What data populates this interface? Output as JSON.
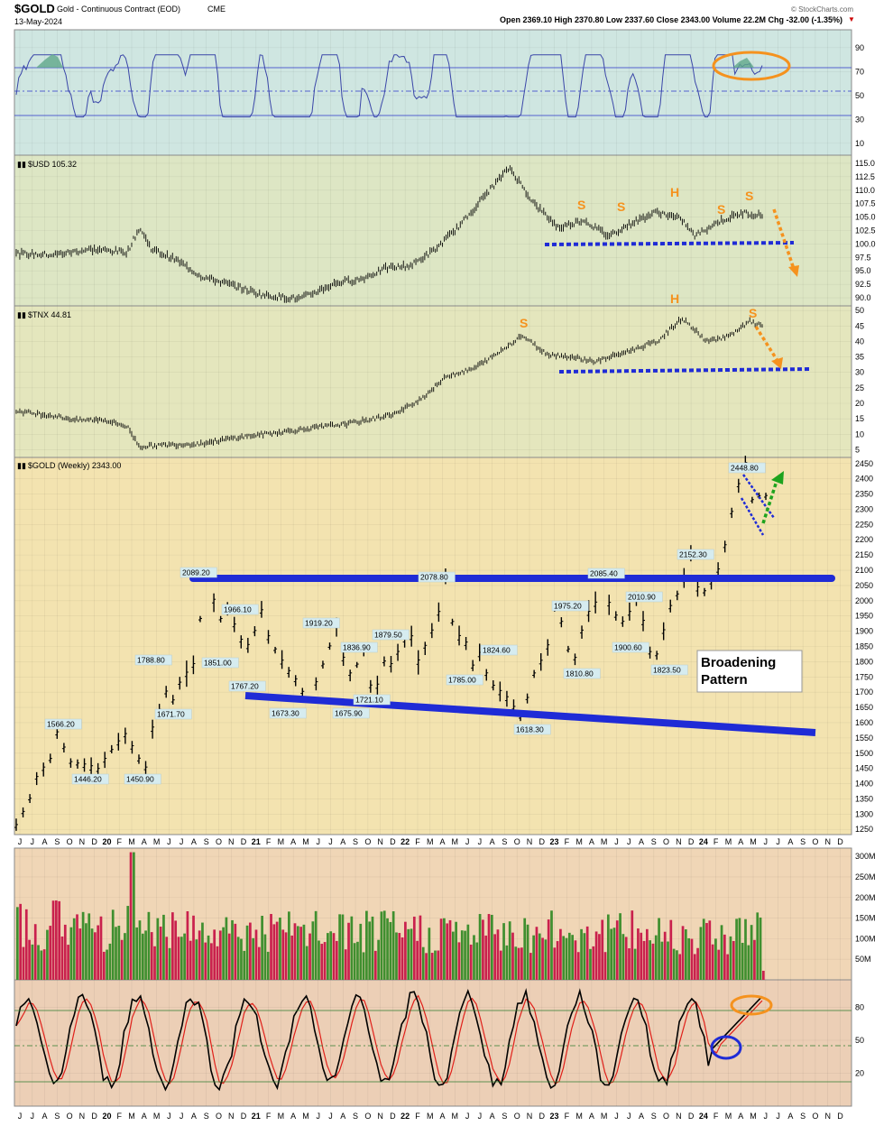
{
  "header": {
    "symbol": "$GOLD",
    "description": "Gold - Continuous Contract (EOD)",
    "exchange": "CME",
    "date": "13-May-2024",
    "quote": "Open 2369.10  High 2370.80  Low 2337.60  Close 2343.00  Volume 22.2M  Chg -32.00 (-1.35%)",
    "watermark": "© StockCharts.com"
  },
  "panels": {
    "rsi": {
      "ticks": [
        "90",
        "70",
        "50",
        "30",
        "10"
      ]
    },
    "usd": {
      "label": "$USD 105.32",
      "ticks": [
        "115.0",
        "112.5",
        "110.0",
        "107.5",
        "105.0",
        "102.5",
        "100.0",
        "97.5",
        "95.0",
        "92.5",
        "90.0"
      ]
    },
    "tnx": {
      "label": "$TNX 44.81",
      "ticks": [
        "50",
        "45",
        "40",
        "35",
        "30",
        "25",
        "20",
        "15",
        "10",
        "5"
      ]
    },
    "gold": {
      "label": "$GOLD (Weekly) 2343.00",
      "ticks": [
        "2450",
        "2400",
        "2350",
        "2300",
        "2250",
        "2200",
        "2150",
        "2100",
        "2050",
        "2000",
        "1950",
        "1900",
        "1850",
        "1800",
        "1750",
        "1700",
        "1650",
        "1600",
        "1550",
        "1500",
        "1450",
        "1400",
        "1350",
        "1300",
        "1250"
      ]
    },
    "volume": {
      "ticks": [
        "300M",
        "250M",
        "200M",
        "150M",
        "100M",
        "50M"
      ]
    },
    "stoch": {
      "ticks": [
        "80",
        "50",
        "20"
      ]
    }
  },
  "x_axis": {
    "labels": [
      "J",
      "J",
      "A",
      "S",
      "O",
      "N",
      "D",
      "20",
      "F",
      "M",
      "A",
      "M",
      "J",
      "J",
      "A",
      "S",
      "O",
      "N",
      "D",
      "21",
      "F",
      "M",
      "A",
      "M",
      "J",
      "J",
      "A",
      "S",
      "O",
      "N",
      "D",
      "22",
      "F",
      "M",
      "A",
      "M",
      "J",
      "J",
      "A",
      "S",
      "O",
      "N",
      "D",
      "23",
      "F",
      "M",
      "A",
      "M",
      "J",
      "J",
      "A",
      "S",
      "O",
      "N",
      "D",
      "24",
      "F",
      "M",
      "A",
      "M",
      "J",
      "J",
      "A",
      "S",
      "O",
      "N",
      "D"
    ],
    "bold_labels": [
      "20",
      "21",
      "22",
      "23",
      "24"
    ]
  },
  "annotations": {
    "usd_pattern": [
      "S",
      "S",
      "H",
      "S",
      "S"
    ],
    "tnx_pattern": [
      "S",
      "H",
      "S"
    ],
    "callout_line1": "Broadening",
    "callout_line2": "Pattern"
  },
  "colors": {
    "rsi_bg": "#cfe6e1",
    "usd_bg": "#dde6c4",
    "tnx_bg": "#e4e6bd",
    "gold_bg": "#f3e3b0",
    "volume_bg": "#f0d6b6",
    "stoch_bg": "#eccfb6",
    "blue_line": "#1f2bd6",
    "orange": "#f5921e",
    "green_arrow": "#1ea31e",
    "volume_up": "#3f8f2f",
    "volume_down": "#c9214d",
    "stoch_k": "#000000",
    "stoch_d": "#e0201a"
  },
  "chart_data": {
    "type": "line",
    "title": "$GOLD Gold - Continuous Contract (EOD) CME",
    "price_labels": [
      {
        "label": "1566.20",
        "value": 1566.2
      },
      {
        "label": "1446.20",
        "value": 1446.2
      },
      {
        "label": "1450.90",
        "value": 1450.9
      },
      {
        "label": "1788.80",
        "value": 1788.8
      },
      {
        "label": "1671.70",
        "value": 1671.7
      },
      {
        "label": "2089.20",
        "value": 2089.2
      },
      {
        "label": "1966.10",
        "value": 1966.1
      },
      {
        "label": "1851.00",
        "value": 1851.0
      },
      {
        "label": "1767.20",
        "value": 1767.2
      },
      {
        "label": "1673.30",
        "value": 1673.3
      },
      {
        "label": "1919.20",
        "value": 1919.2
      },
      {
        "label": "1836.90",
        "value": 1836.9
      },
      {
        "label": "1721.10",
        "value": 1721.1
      },
      {
        "label": "1675.90",
        "value": 1675.9
      },
      {
        "label": "1879.50",
        "value": 1879.5
      },
      {
        "label": "2078.80",
        "value": 2078.8
      },
      {
        "label": "1785.00",
        "value": 1785.0
      },
      {
        "label": "1824.60",
        "value": 1824.6
      },
      {
        "label": "1618.30",
        "value": 1618.3
      },
      {
        "label": "1975.20",
        "value": 1975.2
      },
      {
        "label": "1810.80",
        "value": 1810.8
      },
      {
        "label": "2085.40",
        "value": 2085.4
      },
      {
        "label": "1900.60",
        "value": 1900.6
      },
      {
        "label": "2010.90",
        "value": 2010.9
      },
      {
        "label": "1823.50",
        "value": 1823.5
      },
      {
        "label": "2152.30",
        "value": 2152.3
      },
      {
        "label": "2448.80",
        "value": 2448.8
      }
    ],
    "series": [
      {
        "name": "$GOLD (Weekly)",
        "points": [
          [
            0,
            1262
          ],
          [
            2,
            1350
          ],
          [
            3,
            1420
          ],
          [
            5,
            1480
          ],
          [
            6,
            1566
          ],
          [
            8,
            1470
          ],
          [
            10,
            1460
          ],
          [
            12,
            1446
          ],
          [
            14,
            1510
          ],
          [
            16,
            1560
          ],
          [
            18,
            1480
          ],
          [
            19,
            1451
          ],
          [
            20,
            1580
          ],
          [
            22,
            1700
          ],
          [
            23,
            1672
          ],
          [
            24,
            1730
          ],
          [
            25,
            1760
          ],
          [
            26,
            1789
          ],
          [
            27,
            1940
          ],
          [
            28,
            2089
          ],
          [
            29,
            2000
          ],
          [
            30,
            1940
          ],
          [
            31,
            1980
          ],
          [
            32,
            1920
          ],
          [
            33,
            1870
          ],
          [
            34,
            1851
          ],
          [
            35,
            1900
          ],
          [
            36,
            1966
          ],
          [
            37,
            1880
          ],
          [
            38,
            1840
          ],
          [
            39,
            1800
          ],
          [
            40,
            1767
          ],
          [
            41,
            1740
          ],
          [
            42,
            1700
          ],
          [
            43,
            1673
          ],
          [
            44,
            1730
          ],
          [
            45,
            1790
          ],
          [
            46,
            1850
          ],
          [
            47,
            1919
          ],
          [
            48,
            1810
          ],
          [
            49,
            1760
          ],
          [
            50,
            1790
          ],
          [
            51,
            1837
          ],
          [
            52,
            1720
          ],
          [
            53,
            1721
          ],
          [
            54,
            1800
          ],
          [
            55,
            1790
          ],
          [
            56,
            1830
          ],
          [
            57,
            1870
          ],
          [
            58,
            1880
          ],
          [
            59,
            1800
          ],
          [
            60,
            1850
          ],
          [
            61,
            1900
          ],
          [
            62,
            1960
          ],
          [
            63,
            2079
          ],
          [
            64,
            1930
          ],
          [
            65,
            1880
          ],
          [
            66,
            1860
          ],
          [
            67,
            1785
          ],
          [
            68,
            1825
          ],
          [
            69,
            1760
          ],
          [
            70,
            1720
          ],
          [
            71,
            1700
          ],
          [
            72,
            1680
          ],
          [
            73,
            1650
          ],
          [
            74,
            1618
          ],
          [
            75,
            1680
          ],
          [
            76,
            1760
          ],
          [
            77,
            1800
          ],
          [
            78,
            1850
          ],
          [
            79,
            1975
          ],
          [
            80,
            1930
          ],
          [
            81,
            1840
          ],
          [
            82,
            1811
          ],
          [
            83,
            1900
          ],
          [
            84,
            1960
          ],
          [
            85,
            1990
          ],
          [
            86,
            2085
          ],
          [
            87,
            1990
          ],
          [
            88,
            1950
          ],
          [
            89,
            1930
          ],
          [
            90,
            1960
          ],
          [
            91,
            2011
          ],
          [
            92,
            1930
          ],
          [
            93,
            1830
          ],
          [
            94,
            1823
          ],
          [
            95,
            1900
          ],
          [
            96,
            1980
          ],
          [
            97,
            2020
          ],
          [
            98,
            2070
          ],
          [
            99,
            2152
          ],
          [
            100,
            2040
          ],
          [
            101,
            2030
          ],
          [
            102,
            2060
          ],
          [
            103,
            2100
          ],
          [
            104,
            2180
          ],
          [
            105,
            2290
          ],
          [
            106,
            2380
          ],
          [
            107,
            2449
          ],
          [
            108,
            2330
          ],
          [
            109,
            2343
          ]
        ]
      },
      {
        "name": "$USD",
        "points": [
          [
            0,
            98.2
          ],
          [
            6,
            98.0
          ],
          [
            12,
            99.0
          ],
          [
            18,
            98.5
          ],
          [
            20,
            103.0
          ],
          [
            22,
            99.0
          ],
          [
            26,
            97.0
          ],
          [
            30,
            94.0
          ],
          [
            36,
            92.0
          ],
          [
            40,
            90.5
          ],
          [
            46,
            89.8
          ],
          [
            52,
            92.8
          ],
          [
            56,
            93.5
          ],
          [
            60,
            95.5
          ],
          [
            64,
            96.0
          ],
          [
            68,
            99.0
          ],
          [
            72,
            103.5
          ],
          [
            76,
            109.0
          ],
          [
            80,
            114.2
          ],
          [
            84,
            107.5
          ],
          [
            88,
            103.0
          ],
          [
            92,
            104.5
          ],
          [
            96,
            101.5
          ],
          [
            100,
            104.0
          ],
          [
            104,
            106.0
          ],
          [
            108,
            104.5
          ],
          [
            110,
            101.5
          ],
          [
            114,
            104.2
          ],
          [
            118,
            105.8
          ],
          [
            121,
            105.3
          ]
        ]
      },
      {
        "name": "$TNX",
        "points": [
          [
            0,
            17.5
          ],
          [
            6,
            16.0
          ],
          [
            10,
            14.5
          ],
          [
            14,
            14.8
          ],
          [
            18,
            12.5
          ],
          [
            20,
            6.0
          ],
          [
            24,
            6.5
          ],
          [
            30,
            7.0
          ],
          [
            36,
            9.0
          ],
          [
            42,
            10.5
          ],
          [
            48,
            12.0
          ],
          [
            54,
            13.5
          ],
          [
            58,
            15.0
          ],
          [
            62,
            17.0
          ],
          [
            66,
            22.0
          ],
          [
            70,
            29.0
          ],
          [
            74,
            31.0
          ],
          [
            78,
            36.0
          ],
          [
            82,
            42.0
          ],
          [
            86,
            36.0
          ],
          [
            90,
            35.0
          ],
          [
            94,
            33.5
          ],
          [
            98,
            36.0
          ],
          [
            104,
            40.0
          ],
          [
            108,
            47.5
          ],
          [
            112,
            40.0
          ],
          [
            116,
            42.0
          ],
          [
            119,
            46.5
          ],
          [
            121,
            44.8
          ]
        ]
      }
    ],
    "rsi_levels": [
      70,
      50,
      30
    ],
    "stochastic_levels": [
      80,
      50,
      20
    ],
    "resistance": 2100,
    "volume_ylim": [
      0,
      320
    ],
    "gold_ylim": [
      1230,
      2470
    ],
    "usd_ylim": [
      88.5,
      116.5
    ],
    "tnx_ylim": [
      2.5,
      51.5
    ]
  }
}
